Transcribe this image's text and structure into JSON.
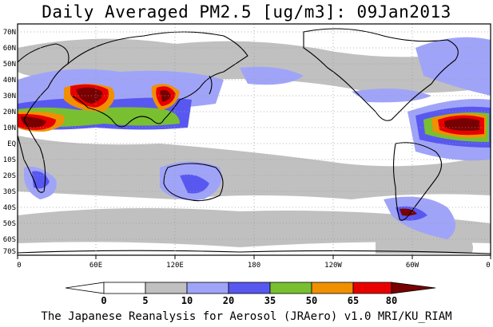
{
  "title": "Daily Averaged PM2.5 [ug/m3]: 09Jan2013",
  "footer": "The Japanese Reanalysis for Aerosol (JRAero) v1.0 MRI/KU_RIAM",
  "lat_labels": [
    "70N",
    "60N",
    "50N",
    "40N",
    "30N",
    "20N",
    "10N",
    "EQ",
    "10S",
    "20S",
    "30S",
    "40S",
    "50S",
    "60S",
    "70S"
  ],
  "lon_labels": [
    "0",
    "60E",
    "120E",
    "180",
    "120W",
    "60W",
    "0"
  ],
  "colorbar": {
    "ticks": [
      "0",
      "5",
      "10",
      "20",
      "35",
      "50",
      "65",
      "80"
    ],
    "colors": [
      "#ffffff",
      "#c0c0c0",
      "#a0a4f8",
      "#5858f0",
      "#78c030",
      "#f09000",
      "#e80000",
      "#780000"
    ]
  },
  "colors": {
    "land_outline": "#000000",
    "grid": "#9a9a9a",
    "background": "#ffffff"
  }
}
